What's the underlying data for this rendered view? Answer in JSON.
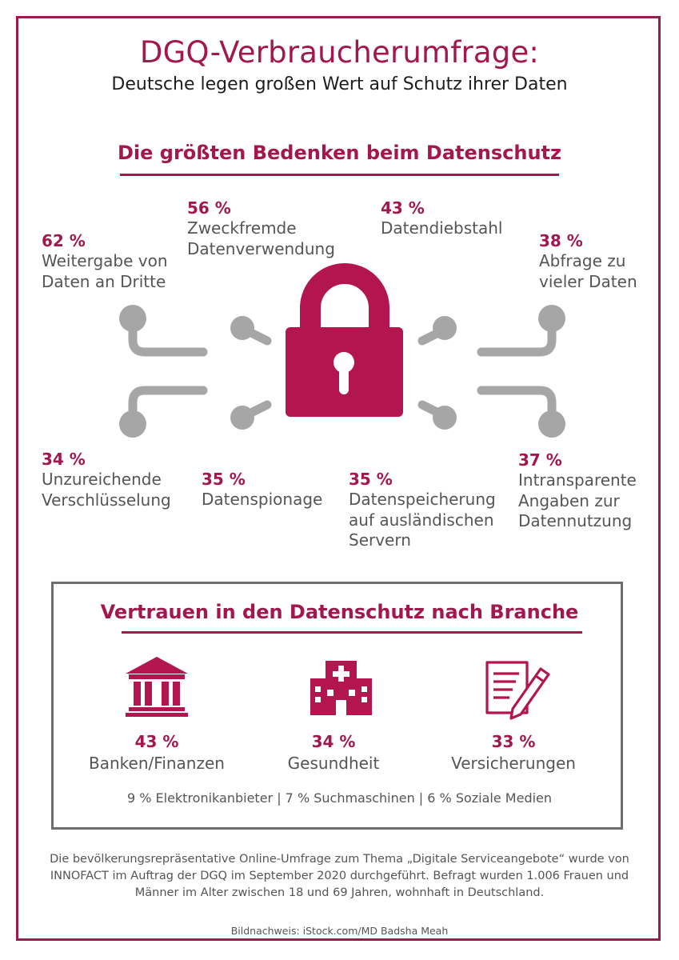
{
  "header": {
    "title": "DGQ-Verbraucherumfrage:",
    "subtitle": "Deutsche legen großen Wert auf Schutz ihrer Daten"
  },
  "concerns_section": {
    "heading": "Die größten Bedenken beim Datenschutz",
    "items": [
      {
        "percent": "62 %",
        "label": "Weitergabe von\nDaten an Dritte"
      },
      {
        "percent": "56 %",
        "label": "Zweckfremde\nDatenverwendung"
      },
      {
        "percent": "43 %",
        "label": "Datendiebstahl"
      },
      {
        "percent": "38 %",
        "label": "Abfrage zu\nvieler Daten"
      },
      {
        "percent": "34 %",
        "label": "Unzureichende\nVerschlüsselung"
      },
      {
        "percent": "35 %",
        "label": "Datenspionage"
      },
      {
        "percent": "35 %",
        "label": "Datenspeicherung\nauf ausländischen\nServern"
      },
      {
        "percent": "37 %",
        "label": "Intransparente\nAngaben zur\nDatennutzung"
      }
    ]
  },
  "trust_section": {
    "heading": "Vertrauen in den Datenschutz nach Branche",
    "sectors": [
      {
        "percent": "43 %",
        "label": "Banken/Finanzen",
        "icon": "bank-icon"
      },
      {
        "percent": "34 %",
        "label": "Gesundheit",
        "icon": "hospital-icon"
      },
      {
        "percent": "33 %",
        "label": "Versicherungen",
        "icon": "document-pen-icon"
      }
    ],
    "others": "9 % Elektronikanbieter | 7 % Suchmaschinen | 6 % Soziale Medien"
  },
  "footnote": "Die bevölkerungsrepräsentative Online-Umfrage zum Thema „Digitale Serviceangebote“ wurde von INNOFACT im Auftrag der DGQ im September 2020 durchgeführt. Befragt wurden 1.006 Frauen und Männer im Alter zwischen 18 und 69 Jahren, wohnhaft in Deutschland.",
  "credit": "Bildnachweis: iStock.com/MD Badsha Meah",
  "colors": {
    "accent": "#a3174f",
    "frame": "#9b1b4d",
    "connector": "#a6a6a6",
    "box_border": "#6e6e6e",
    "text": "#555555"
  }
}
